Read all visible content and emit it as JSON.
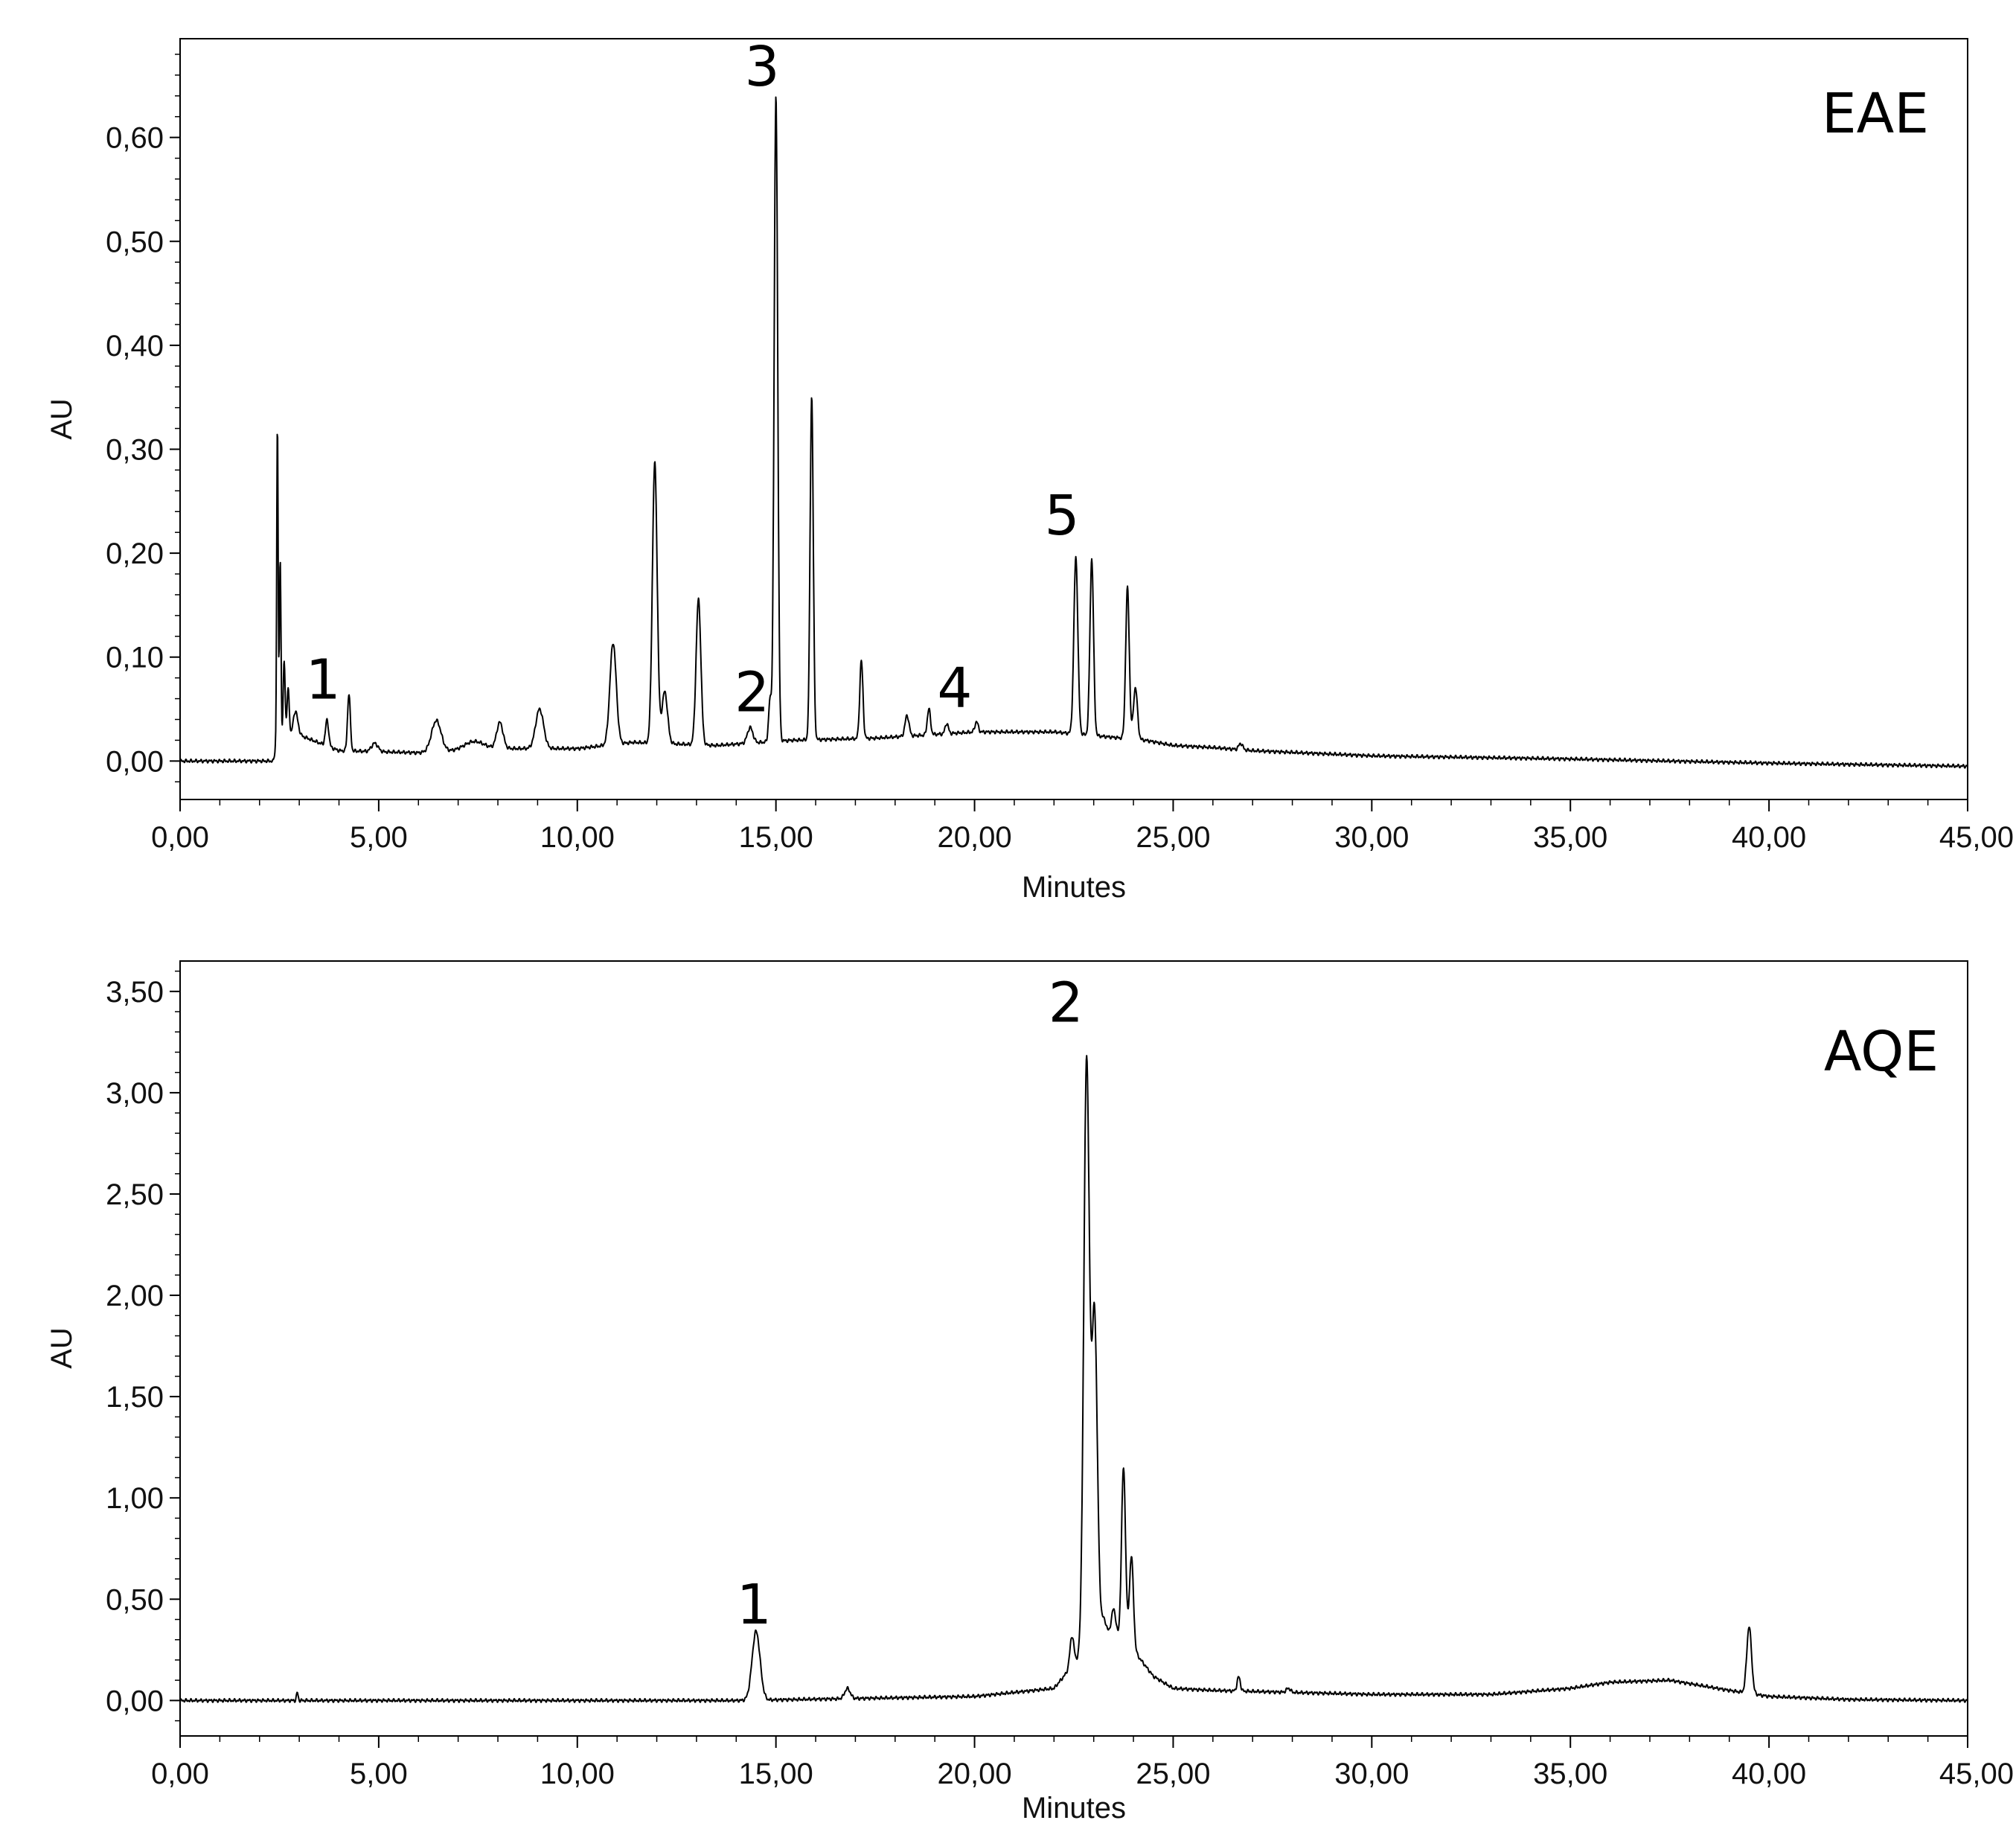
{
  "chart_data": [
    {
      "type": "line",
      "panel_label": "EAE",
      "xlabel": "Minutes",
      "ylabel": "AU",
      "xlim": [
        0,
        45
      ],
      "ylim": [
        -0.037,
        0.695
      ],
      "x_ticks": [
        "0,00",
        "5,00",
        "10,00",
        "15,00",
        "20,00",
        "25,00",
        "30,00",
        "35,00",
        "40,00",
        "45,00"
      ],
      "y_ticks": [
        "0,00",
        "0,10",
        "0,20",
        "0,30",
        "0,40",
        "0,50",
        "0,60"
      ],
      "y_tick_values": [
        0,
        0.1,
        0.2,
        0.3,
        0.4,
        0.5,
        0.6
      ],
      "grid": false,
      "baseline": [
        [
          0,
          0
        ],
        [
          2.35,
          0
        ],
        [
          2.4,
          0.012
        ],
        [
          3,
          0.025
        ],
        [
          4,
          0.01
        ],
        [
          6,
          0.008
        ],
        [
          8,
          0.012
        ],
        [
          10,
          0.012
        ],
        [
          11.4,
          0.018
        ],
        [
          13.5,
          0.015
        ],
        [
          15.4,
          0.02
        ],
        [
          17.5,
          0.022
        ],
        [
          20,
          0.028
        ],
        [
          22,
          0.028
        ],
        [
          24.3,
          0.02
        ],
        [
          25,
          0.015
        ],
        [
          26,
          0.013
        ],
        [
          27,
          0.01
        ],
        [
          30,
          0.005
        ],
        [
          35,
          0.002
        ],
        [
          40,
          -0.002
        ],
        [
          45,
          -0.005
        ]
      ],
      "peaks": [
        {
          "t": 2.45,
          "h": 0.31,
          "w": 0.018
        },
        {
          "t": 2.52,
          "h": 0.18,
          "w": 0.02
        },
        {
          "t": 2.62,
          "h": 0.08,
          "w": 0.025
        },
        {
          "t": 2.72,
          "h": 0.05,
          "w": 0.03
        },
        {
          "t": 2.9,
          "h": 0.025,
          "w": 0.06
        },
        {
          "t": 3.7,
          "h": 0.025,
          "w": 0.04
        },
        {
          "t": 4.25,
          "h": 0.055,
          "w": 0.035
        },
        {
          "t": 4.9,
          "h": 0.008,
          "w": 0.08
        },
        {
          "t": 6.45,
          "h": 0.03,
          "w": 0.12
        },
        {
          "t": 7.4,
          "h": 0.008,
          "w": 0.25
        },
        {
          "t": 8.05,
          "h": 0.025,
          "w": 0.08
        },
        {
          "t": 9.05,
          "h": 0.038,
          "w": 0.1
        },
        {
          "t": 10.9,
          "h": 0.098,
          "w": 0.08
        },
        {
          "t": 11.95,
          "h": 0.27,
          "w": 0.06
        },
        {
          "t": 12.2,
          "h": 0.05,
          "w": 0.07
        },
        {
          "t": 13.05,
          "h": 0.14,
          "w": 0.06
        },
        {
          "t": 14.35,
          "h": 0.015,
          "w": 0.07
        },
        {
          "t": 14.85,
          "h": 0.04,
          "w": 0.035
        },
        {
          "t": 15.0,
          "h": 0.62,
          "w": 0.045
        },
        {
          "t": 15.9,
          "h": 0.33,
          "w": 0.04
        },
        {
          "t": 17.15,
          "h": 0.075,
          "w": 0.04
        },
        {
          "t": 18.3,
          "h": 0.02,
          "w": 0.05
        },
        {
          "t": 18.85,
          "h": 0.025,
          "w": 0.04
        },
        {
          "t": 19.3,
          "h": 0.01,
          "w": 0.04
        },
        {
          "t": 20.05,
          "h": 0.01,
          "w": 0.04
        },
        {
          "t": 22.55,
          "h": 0.17,
          "w": 0.05
        },
        {
          "t": 22.95,
          "h": 0.17,
          "w": 0.045
        },
        {
          "t": 23.85,
          "h": 0.145,
          "w": 0.045
        },
        {
          "t": 24.05,
          "h": 0.05,
          "w": 0.05
        },
        {
          "t": 26.7,
          "h": 0.006,
          "w": 0.05
        }
      ],
      "annotations": [
        {
          "text": "1",
          "x": 3.6,
          "y": 0.06
        },
        {
          "text": "2",
          "x": 14.4,
          "y": 0.048
        },
        {
          "text": "3",
          "x": 14.65,
          "y": 0.65
        },
        {
          "text": "4",
          "x": 19.5,
          "y": 0.052
        },
        {
          "text": "5",
          "x": 22.2,
          "y": 0.218
        }
      ]
    },
    {
      "type": "line",
      "panel_label": "AQE",
      "xlabel": "Minutes",
      "ylabel": "AU",
      "xlim": [
        0,
        45
      ],
      "ylim": [
        -0.175,
        3.65
      ],
      "x_ticks": [
        "0,00",
        "5,00",
        "10,00",
        "15,00",
        "20,00",
        "25,00",
        "30,00",
        "35,00",
        "40,00",
        "45,00"
      ],
      "y_ticks": [
        "0,00",
        "0,50",
        "1,00",
        "1,50",
        "2,00",
        "2,50",
        "3,00",
        "3,50"
      ],
      "y_tick_values": [
        0,
        0.5,
        1.0,
        1.5,
        2.0,
        2.5,
        3.0,
        3.5
      ],
      "grid": false,
      "baseline": [
        [
          0,
          0
        ],
        [
          14,
          0
        ],
        [
          17,
          0.01
        ],
        [
          20,
          0.02
        ],
        [
          22,
          0.06
        ],
        [
          23,
          0.3
        ],
        [
          23.8,
          0.3
        ],
        [
          24.5,
          0.12
        ],
        [
          25,
          0.06
        ],
        [
          26,
          0.05
        ],
        [
          28,
          0.04
        ],
        [
          30,
          0.03
        ],
        [
          33,
          0.03
        ],
        [
          35,
          0.06
        ],
        [
          36,
          0.09
        ],
        [
          37.5,
          0.1
        ],
        [
          39,
          0.05
        ],
        [
          40,
          0.02
        ],
        [
          42,
          0.005
        ],
        [
          45,
          0
        ]
      ],
      "peaks": [
        {
          "t": 2.95,
          "h": 0.04,
          "w": 0.02
        },
        {
          "t": 14.5,
          "h": 0.34,
          "w": 0.1
        },
        {
          "t": 16.8,
          "h": 0.05,
          "w": 0.07
        },
        {
          "t": 22.45,
          "h": 0.15,
          "w": 0.05
        },
        {
          "t": 22.82,
          "h": 2.9,
          "w": 0.07
        },
        {
          "t": 23.02,
          "h": 1.6,
          "w": 0.07
        },
        {
          "t": 23.25,
          "h": 0.1,
          "w": 0.08
        },
        {
          "t": 23.5,
          "h": 0.15,
          "w": 0.06
        },
        {
          "t": 23.75,
          "h": 0.85,
          "w": 0.05
        },
        {
          "t": 23.95,
          "h": 0.45,
          "w": 0.05
        },
        {
          "t": 26.65,
          "h": 0.07,
          "w": 0.04
        },
        {
          "t": 27.9,
          "h": 0.02,
          "w": 0.05
        },
        {
          "t": 39.5,
          "h": 0.33,
          "w": 0.06
        }
      ],
      "annotations": [
        {
          "text": "1",
          "x": 14.45,
          "y": 0.38
        },
        {
          "text": "2",
          "x": 22.3,
          "y": 3.35
        }
      ]
    }
  ]
}
